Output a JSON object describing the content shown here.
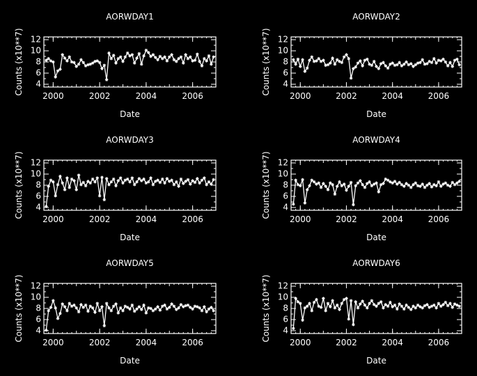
{
  "figure": {
    "background": "#000000",
    "foreground": "#ffffff"
  },
  "chart_data": [
    {
      "type": "line",
      "title": "AORWDAY1",
      "xlabel": "Date",
      "ylabel": "Counts (x10**7)",
      "xlim": [
        1999.6,
        2007.0
      ],
      "ylim": [
        3.5,
        12.5
      ],
      "xticks": [
        2000,
        2002,
        2004,
        2006
      ],
      "yticks": [
        4,
        6,
        8,
        10,
        12
      ],
      "marker": "asterisk",
      "series": [
        {
          "x": [
            1999.7,
            1999.8,
            1999.9,
            2000.0,
            2000.1,
            2000.2,
            2000.3,
            2000.4,
            2000.5,
            2000.6,
            2000.7,
            2000.8,
            2000.9,
            2001.0,
            2001.1,
            2001.2,
            2001.3,
            2001.4,
            2001.5,
            2001.6,
            2001.7,
            2001.8,
            2001.9,
            2002.0,
            2002.1,
            2002.2,
            2002.3,
            2002.4,
            2002.5,
            2002.6,
            2002.7,
            2002.8,
            2002.9,
            2003.0,
            2003.1,
            2003.2,
            2003.3,
            2003.4,
            2003.5,
            2003.6,
            2003.7,
            2003.8,
            2003.9,
            2004.0,
            2004.1,
            2004.2,
            2004.3,
            2004.4,
            2004.5,
            2004.6,
            2004.7,
            2004.8,
            2004.9,
            2005.0,
            2005.1,
            2005.2,
            2005.3,
            2005.4,
            2005.5,
            2005.6,
            2005.7,
            2005.8,
            2005.9,
            2006.0,
            2006.1,
            2006.2,
            2006.3,
            2006.4,
            2006.5,
            2006.6,
            2006.7,
            2006.8,
            2006.9
          ],
          "y": [
            8.3,
            8.6,
            8.2,
            8.0,
            5.3,
            6.4,
            6.7,
            9.3,
            8.7,
            8.2,
            8.9,
            8.0,
            7.9,
            7.2,
            7.6,
            8.4,
            7.9,
            7.3,
            7.5,
            7.6,
            7.8,
            8.1,
            8.2,
            7.9,
            6.8,
            7.4,
            4.8,
            9.6,
            8.6,
            9.2,
            7.8,
            8.6,
            8.9,
            8.1,
            8.9,
            9.6,
            9.1,
            9.3,
            7.8,
            8.7,
            9.5,
            7.6,
            9.1,
            10.1,
            9.7,
            9.0,
            9.3,
            8.8,
            8.4,
            9.0,
            8.6,
            8.9,
            8.2,
            8.9,
            9.3,
            8.4,
            8.1,
            8.6,
            8.9,
            7.8,
            9.3,
            8.6,
            8.9,
            8.2,
            8.3,
            9.4,
            8.1,
            7.3,
            8.6,
            8.2,
            9.1,
            7.6,
            8.9
          ]
        }
      ]
    },
    {
      "type": "line",
      "title": "AORWDAY2",
      "xlabel": "Date",
      "ylabel": "Counts (x10**7)",
      "xlim": [
        1999.6,
        2007.0
      ],
      "ylim": [
        3.5,
        12.5
      ],
      "xticks": [
        2000,
        2002,
        2004,
        2006
      ],
      "yticks": [
        4,
        6,
        8,
        10,
        12
      ],
      "marker": "asterisk",
      "series": [
        {
          "x": [
            1999.7,
            1999.8,
            1999.9,
            2000.0,
            2000.1,
            2000.2,
            2000.3,
            2000.4,
            2000.5,
            2000.6,
            2000.7,
            2000.8,
            2000.9,
            2001.0,
            2001.1,
            2001.2,
            2001.3,
            2001.4,
            2001.5,
            2001.6,
            2001.7,
            2001.8,
            2001.9,
            2002.0,
            2002.1,
            2002.2,
            2002.3,
            2002.4,
            2002.5,
            2002.6,
            2002.7,
            2002.8,
            2002.9,
            2003.0,
            2003.1,
            2003.2,
            2003.3,
            2003.4,
            2003.5,
            2003.6,
            2003.7,
            2003.8,
            2003.9,
            2004.0,
            2004.1,
            2004.2,
            2004.3,
            2004.4,
            2004.5,
            2004.6,
            2004.7,
            2004.8,
            2004.9,
            2005.0,
            2005.1,
            2005.2,
            2005.3,
            2005.4,
            2005.5,
            2005.6,
            2005.7,
            2005.8,
            2005.9,
            2006.0,
            2006.1,
            2006.2,
            2006.3,
            2006.4,
            2006.5,
            2006.6,
            2006.7,
            2006.8,
            2006.9
          ],
          "y": [
            8.4,
            7.6,
            8.5,
            7.2,
            8.4,
            6.3,
            6.9,
            8.3,
            8.9,
            8.1,
            8.2,
            8.6,
            8.1,
            8.3,
            7.4,
            7.5,
            7.8,
            8.7,
            7.6,
            8.4,
            8.1,
            7.9,
            8.9,
            9.3,
            8.6,
            5.1,
            6.8,
            7.1,
            7.8,
            8.2,
            7.3,
            8.3,
            8.5,
            7.6,
            7.4,
            8.1,
            7.2,
            6.8,
            7.7,
            7.9,
            7.3,
            6.9,
            7.6,
            7.8,
            7.4,
            7.5,
            7.9,
            7.3,
            7.6,
            8.0,
            7.5,
            7.7,
            7.2,
            7.5,
            7.8,
            7.9,
            8.4,
            7.6,
            7.7,
            8.1,
            7.9,
            8.6,
            7.8,
            8.3,
            8.2,
            8.5,
            8.0,
            7.3,
            7.9,
            7.2,
            8.3,
            8.5,
            7.5
          ]
        }
      ]
    },
    {
      "type": "line",
      "title": "AORWDAY3",
      "xlabel": "Date",
      "ylabel": "Counts (x10**7)",
      "xlim": [
        1999.6,
        2007.0
      ],
      "ylim": [
        3.5,
        12.5
      ],
      "xticks": [
        2000,
        2002,
        2004,
        2006
      ],
      "yticks": [
        4,
        6,
        8,
        10,
        12
      ],
      "marker": "asterisk",
      "series": [
        {
          "x": [
            1999.7,
            1999.8,
            1999.9,
            2000.0,
            2000.1,
            2000.2,
            2000.3,
            2000.4,
            2000.5,
            2000.6,
            2000.7,
            2000.8,
            2000.9,
            2001.0,
            2001.1,
            2001.2,
            2001.3,
            2001.4,
            2001.5,
            2001.6,
            2001.7,
            2001.8,
            2001.9,
            2002.0,
            2002.1,
            2002.2,
            2002.3,
            2002.4,
            2002.5,
            2002.6,
            2002.7,
            2002.8,
            2002.9,
            2003.0,
            2003.1,
            2003.2,
            2003.3,
            2003.4,
            2003.5,
            2003.6,
            2003.7,
            2003.8,
            2003.9,
            2004.0,
            2004.1,
            2004.2,
            2004.3,
            2004.4,
            2004.5,
            2004.6,
            2004.7,
            2004.8,
            2004.9,
            2005.0,
            2005.1,
            2005.2,
            2005.3,
            2005.4,
            2005.5,
            2005.6,
            2005.7,
            2005.8,
            2005.9,
            2006.0,
            2006.1,
            2006.2,
            2006.3,
            2006.4,
            2006.5,
            2006.6,
            2006.7,
            2006.8,
            2006.9
          ],
          "y": [
            4.2,
            7.8,
            8.9,
            8.6,
            6.1,
            8.1,
            9.6,
            8.4,
            7.2,
            9.3,
            7.6,
            9.1,
            8.8,
            7.2,
            9.8,
            8.1,
            8.5,
            7.9,
            8.7,
            8.4,
            9.1,
            8.6,
            9.3,
            6.1,
            9.4,
            5.4,
            9.2,
            8.1,
            8.6,
            9.1,
            7.9,
            8.8,
            9.3,
            8.4,
            8.9,
            9.1,
            8.6,
            9.3,
            8.1,
            8.6,
            9.2,
            8.8,
            9.1,
            8.4,
            8.6,
            9.3,
            8.1,
            8.7,
            8.9,
            8.5,
            9.1,
            8.4,
            9.2,
            8.7,
            8.9,
            8.1,
            8.6,
            7.8,
            9.1,
            8.3,
            8.7,
            9.0,
            8.2,
            8.8,
            8.5,
            9.2,
            8.4,
            8.9,
            9.3,
            8.1,
            8.6,
            8.2,
            9.0
          ]
        }
      ]
    },
    {
      "type": "line",
      "title": "AORWDAY4",
      "xlabel": "Date",
      "ylabel": "Counts (x10**7)",
      "xlim": [
        1999.6,
        2007.0
      ],
      "ylim": [
        3.5,
        12.5
      ],
      "xticks": [
        2000,
        2002,
        2004,
        2006
      ],
      "yticks": [
        4,
        6,
        8,
        10,
        12
      ],
      "marker": "asterisk",
      "series": [
        {
          "x": [
            1999.7,
            1999.8,
            1999.9,
            2000.0,
            2000.1,
            2000.2,
            2000.3,
            2000.4,
            2000.5,
            2000.6,
            2000.7,
            2000.8,
            2000.9,
            2001.0,
            2001.1,
            2001.2,
            2001.3,
            2001.4,
            2001.5,
            2001.6,
            2001.7,
            2001.8,
            2001.9,
            2002.0,
            2002.1,
            2002.2,
            2002.3,
            2002.4,
            2002.5,
            2002.6,
            2002.7,
            2002.8,
            2002.9,
            2003.0,
            2003.1,
            2003.2,
            2003.3,
            2003.4,
            2003.5,
            2003.6,
            2003.7,
            2003.8,
            2003.9,
            2004.0,
            2004.1,
            2004.2,
            2004.3,
            2004.4,
            2004.5,
            2004.6,
            2004.7,
            2004.8,
            2004.9,
            2005.0,
            2005.1,
            2005.2,
            2005.3,
            2005.4,
            2005.5,
            2005.6,
            2005.7,
            2005.8,
            2005.9,
            2006.0,
            2006.1,
            2006.2,
            2006.3,
            2006.4,
            2006.5,
            2006.6,
            2006.7,
            2006.8,
            2006.9
          ],
          "y": [
            4.6,
            8.9,
            8.1,
            7.9,
            9.0,
            4.8,
            7.2,
            7.9,
            8.9,
            8.6,
            8.2,
            8.4,
            7.6,
            8.3,
            7.8,
            7.2,
            8.4,
            8.1,
            6.4,
            7.8,
            8.6,
            7.9,
            8.2,
            7.1,
            7.8,
            8.5,
            4.5,
            7.9,
            8.4,
            8.8,
            8.1,
            7.6,
            8.3,
            8.6,
            7.9,
            8.2,
            8.4,
            6.8,
            8.1,
            8.3,
            9.1,
            8.9,
            8.6,
            8.4,
            8.7,
            8.2,
            8.5,
            8.1,
            7.8,
            8.3,
            8.0,
            7.6,
            8.1,
            8.4,
            7.9,
            7.8,
            8.2,
            7.6,
            8.0,
            8.3,
            7.7,
            8.1,
            7.9,
            8.6,
            7.8,
            8.2,
            8.4,
            8.0,
            7.8,
            8.5,
            8.1,
            8.4,
            8.7
          ]
        }
      ]
    },
    {
      "type": "line",
      "title": "AORWDAY5",
      "xlabel": "Date",
      "ylabel": "Counts (x10**7)",
      "xlim": [
        1999.6,
        2007.0
      ],
      "ylim": [
        3.5,
        12.5
      ],
      "xticks": [
        2000,
        2002,
        2004,
        2006
      ],
      "yticks": [
        4,
        6,
        8,
        10,
        12
      ],
      "marker": "asterisk",
      "series": [
        {
          "x": [
            1999.7,
            1999.8,
            1999.9,
            2000.0,
            2000.1,
            2000.2,
            2000.3,
            2000.4,
            2000.5,
            2000.6,
            2000.7,
            2000.8,
            2000.9,
            2001.0,
            2001.1,
            2001.2,
            2001.3,
            2001.4,
            2001.5,
            2001.6,
            2001.7,
            2001.8,
            2001.9,
            2002.0,
            2002.1,
            2002.2,
            2002.3,
            2002.4,
            2002.5,
            2002.6,
            2002.7,
            2002.8,
            2002.9,
            2003.0,
            2003.1,
            2003.2,
            2003.3,
            2003.4,
            2003.5,
            2003.6,
            2003.7,
            2003.8,
            2003.9,
            2004.0,
            2004.1,
            2004.2,
            2004.3,
            2004.4,
            2004.5,
            2004.6,
            2004.7,
            2004.8,
            2004.9,
            2005.0,
            2005.1,
            2005.2,
            2005.3,
            2005.4,
            2005.5,
            2005.6,
            2005.7,
            2005.8,
            2005.9,
            2006.0,
            2006.1,
            2006.2,
            2006.3,
            2006.4,
            2006.5,
            2006.6,
            2006.7,
            2006.8,
            2006.9
          ],
          "y": [
            4.1,
            7.6,
            8.2,
            9.4,
            8.1,
            6.2,
            7.1,
            8.8,
            8.3,
            7.6,
            8.9,
            8.4,
            8.6,
            8.1,
            7.4,
            8.7,
            8.2,
            8.6,
            7.5,
            8.4,
            8.1,
            7.3,
            8.9,
            7.6,
            8.3,
            4.9,
            8.9,
            8.1,
            7.6,
            8.4,
            8.8,
            7.2,
            8.1,
            7.6,
            8.4,
            8.2,
            7.9,
            8.6,
            7.5,
            7.9,
            8.3,
            7.8,
            8.6,
            7.2,
            8.1,
            8.0,
            7.6,
            7.9,
            8.3,
            7.7,
            8.4,
            8.6,
            7.9,
            8.2,
            8.8,
            8.4,
            7.8,
            8.1,
            8.7,
            8.3,
            8.5,
            8.6,
            8.2,
            7.9,
            8.4,
            8.3,
            8.1,
            7.6,
            8.3,
            7.4,
            7.9,
            8.2,
            7.6
          ]
        }
      ]
    },
    {
      "type": "line",
      "title": "AORWDAY6",
      "xlabel": "Date",
      "ylabel": "Counts (x10**7)",
      "xlim": [
        1999.6,
        2007.0
      ],
      "ylim": [
        3.5,
        12.5
      ],
      "xticks": [
        2000,
        2002,
        2004,
        2006
      ],
      "yticks": [
        4,
        6,
        8,
        10,
        12
      ],
      "marker": "asterisk",
      "series": [
        {
          "x": [
            1999.7,
            1999.8,
            1999.9,
            2000.0,
            2000.1,
            2000.2,
            2000.3,
            2000.4,
            2000.5,
            2000.6,
            2000.7,
            2000.8,
            2000.9,
            2001.0,
            2001.1,
            2001.2,
            2001.3,
            2001.4,
            2001.5,
            2001.6,
            2001.7,
            2001.8,
            2001.9,
            2002.0,
            2002.1,
            2002.2,
            2002.3,
            2002.4,
            2002.5,
            2002.6,
            2002.7,
            2002.8,
            2002.9,
            2003.0,
            2003.1,
            2003.2,
            2003.3,
            2003.4,
            2003.5,
            2003.6,
            2003.7,
            2003.8,
            2003.9,
            2004.0,
            2004.1,
            2004.2,
            2004.3,
            2004.4,
            2004.5,
            2004.6,
            2004.7,
            2004.8,
            2004.9,
            2005.0,
            2005.1,
            2005.2,
            2005.3,
            2005.4,
            2005.5,
            2005.6,
            2005.7,
            2005.8,
            2005.9,
            2006.0,
            2006.1,
            2006.2,
            2006.3,
            2006.4,
            2006.5,
            2006.6,
            2006.7,
            2006.8,
            2006.9
          ],
          "y": [
            4.4,
            9.8,
            9.2,
            8.9,
            5.9,
            8.1,
            8.4,
            8.9,
            7.6,
            9.1,
            9.6,
            8.4,
            8.2,
            9.8,
            7.6,
            8.9,
            8.3,
            9.4,
            8.1,
            8.6,
            7.8,
            8.9,
            9.6,
            9.8,
            6.1,
            9.4,
            5.1,
            9.2,
            8.1,
            8.8,
            9.3,
            8.6,
            8.1,
            8.9,
            9.4,
            8.7,
            8.4,
            8.9,
            9.2,
            8.1,
            8.7,
            8.4,
            9.1,
            8.3,
            8.6,
            7.9,
            8.8,
            8.4,
            7.9,
            8.6,
            8.2,
            7.8,
            8.4,
            8.1,
            8.6,
            8.3,
            8.1,
            8.5,
            8.7,
            8.2,
            8.4,
            8.6,
            8.1,
            8.9,
            8.4,
            8.7,
            9.1,
            8.5,
            8.9,
            8.2,
            8.8,
            8.6,
            8.4
          ]
        }
      ]
    }
  ]
}
